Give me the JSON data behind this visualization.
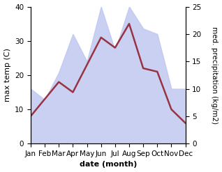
{
  "months": [
    "Jan",
    "Feb",
    "Mar",
    "Apr",
    "May",
    "Jun",
    "Jul",
    "Aug",
    "Sep",
    "Oct",
    "Nov",
    "Dec"
  ],
  "temperature": [
    8,
    13,
    18,
    15,
    23,
    31,
    28,
    35,
    22,
    21,
    10,
    6
  ],
  "precipitation": [
    10,
    8,
    13,
    20,
    15,
    25,
    17,
    25,
    21,
    20,
    10,
    10
  ],
  "temp_color": "#993344",
  "precip_fill_color": "#c0c8f0",
  "precip_alpha": 0.85,
  "temp_ylim": [
    0,
    40
  ],
  "precip_ylim": [
    0,
    25
  ],
  "xlabel": "date (month)",
  "ylabel_left": "max temp (C)",
  "ylabel_right": "med. precipitation (kg/m2)",
  "bg_color": "#ffffff",
  "label_fontsize": 8,
  "tick_fontsize": 7.5,
  "temp_linewidth": 1.8
}
